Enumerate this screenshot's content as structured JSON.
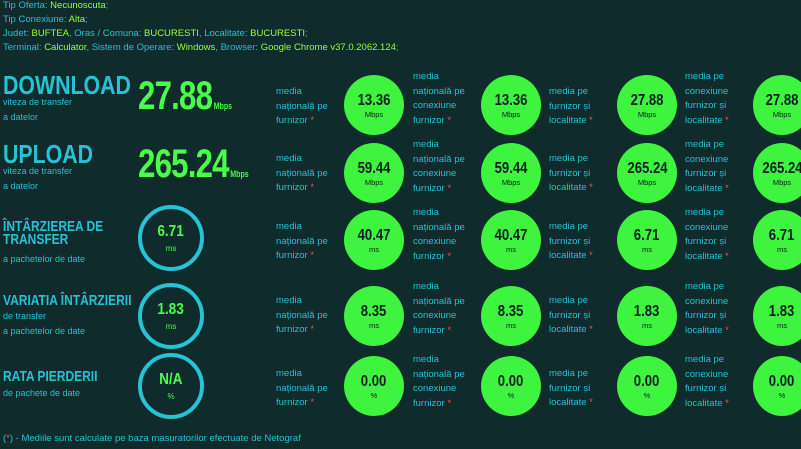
{
  "info": [
    {
      "k": "Tip Oferta: ",
      "v": "Necunoscuta",
      "t": ";"
    },
    {
      "k": "Tip Conexiune: ",
      "v": "Alta",
      "t": ";"
    },
    {
      "k": "Judet: ",
      "v": "BUFTEA",
      "t": ", ",
      "k2": "Oras / Comuna: ",
      "v2": "BUCURESTI",
      "t2": ", ",
      "k3": "Localitate: ",
      "v3": "BUCURESTI",
      "t3": ";"
    },
    {
      "k": "Terminal: ",
      "v": "Calculator",
      "t": ", ",
      "k2": "Sistem de Operare: ",
      "v2": "Windows",
      "t2": ", ",
      "k3": "Browser: ",
      "v3": "Google Chrome v37.0.2062.124",
      "t3": ";"
    }
  ],
  "labels": {
    "l1": [
      "media",
      "națională pe",
      "furnizor"
    ],
    "l2": [
      "media",
      "națională pe",
      "conexiune",
      "furnizor"
    ],
    "l3": [
      "media pe",
      "furnizor și",
      "localitate"
    ],
    "l4": [
      "media pe",
      "conexiune",
      "furnizor și",
      "localitate"
    ],
    "star": "*"
  },
  "metrics": [
    {
      "title_lines": [
        "DOWNLOAD"
      ],
      "sub_lines": [
        "viteza de transfer",
        "a datelor"
      ],
      "value": "27.88",
      "unit": "Mbps",
      "circles": [
        {
          "n": "13.36",
          "u": "Mbps"
        },
        {
          "n": "13.36",
          "u": "Mbps"
        },
        {
          "n": "27.88",
          "u": "Mbps"
        },
        {
          "n": "27.88",
          "u": "Mbps"
        }
      ]
    },
    {
      "title_lines": [
        "UPLOAD"
      ],
      "sub_lines": [
        "viteza de transfer",
        "a datelor"
      ],
      "value": "265.24",
      "unit": "Mbps",
      "circles": [
        {
          "n": "59.44",
          "u": "Mbps"
        },
        {
          "n": "59.44",
          "u": "Mbps"
        },
        {
          "n": "265.24",
          "u": "Mbps"
        },
        {
          "n": "265.24",
          "u": "Mbps"
        }
      ]
    },
    {
      "title_lines": [
        "ÎNTÂRZIEREA DE",
        "TRANSFER"
      ],
      "sub_lines": [
        "a pachetelor de date"
      ],
      "value": "6.71",
      "unit": "ms",
      "circles": [
        {
          "n": "40.47",
          "u": "ms"
        },
        {
          "n": "40.47",
          "u": "ms"
        },
        {
          "n": "6.71",
          "u": "ms"
        },
        {
          "n": "6.71",
          "u": "ms"
        }
      ]
    },
    {
      "title_lines": [
        "VARIATIA ÎNTÂRZIERII"
      ],
      "sub_lines": [
        "de transfer",
        "a pachetelor de date"
      ],
      "value": "1.83",
      "unit": "ms",
      "circles": [
        {
          "n": "8.35",
          "u": "ms"
        },
        {
          "n": "8.35",
          "u": "ms"
        },
        {
          "n": "1.83",
          "u": "ms"
        },
        {
          "n": "1.83",
          "u": "ms"
        }
      ]
    },
    {
      "title_lines": [
        "RATA PIERDERII"
      ],
      "sub_lines": [
        "de pachete de date"
      ],
      "value": "N/A",
      "unit": "%",
      "circles": [
        {
          "n": "0.00",
          "u": "%"
        },
        {
          "n": "0.00",
          "u": "%"
        },
        {
          "n": "0.00",
          "u": "%"
        },
        {
          "n": "0.00",
          "u": "%"
        }
      ]
    }
  ],
  "footer": {
    "open": "(",
    "star": "*",
    "close": ")",
    "text": " - Mediile sunt calculate pe baza masuratorilor efectuate de Netograf"
  }
}
